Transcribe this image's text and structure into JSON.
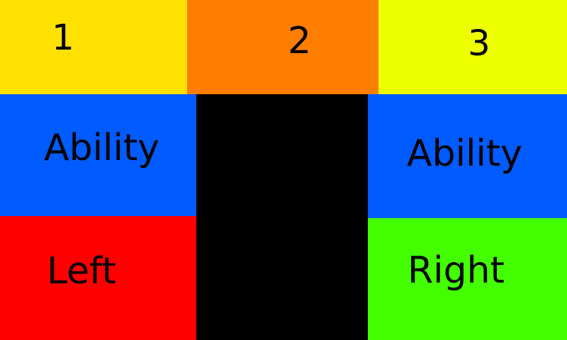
{
  "colors": {
    "slot1": "#FFE100",
    "slot2": "#FF7D00",
    "slot3": "#EEFF00",
    "ability": "#005BFF",
    "left": "#FF0000",
    "right": "#44FF00",
    "center": "#000000",
    "text": "#000000"
  },
  "top_row": {
    "slot1_label": "1",
    "slot2_label": "2",
    "slot3_label": "3"
  },
  "controls": {
    "ability_left_label": "Ability",
    "ability_right_label": "Ability",
    "left_label": "Left",
    "right_label": "Right"
  }
}
